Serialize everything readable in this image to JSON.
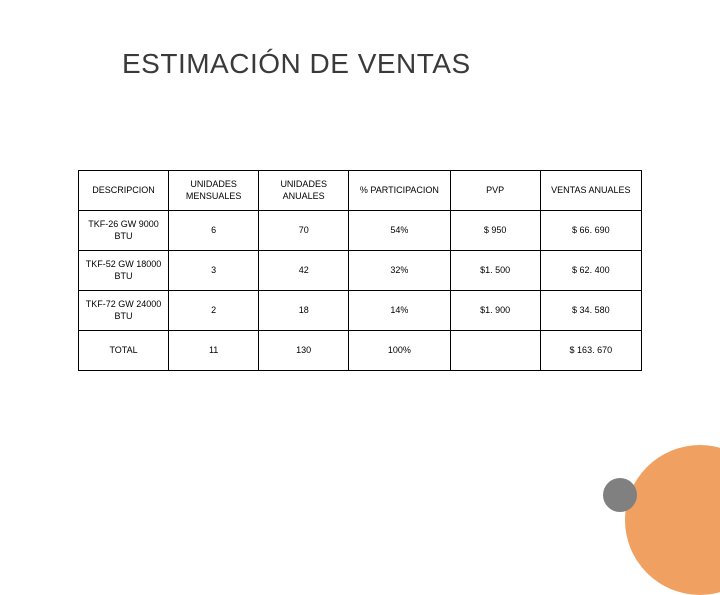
{
  "title": "ESTIMACIÓN DE VENTAS",
  "table": {
    "columns": [
      "DESCRIPCION",
      "UNIDADES MENSUALES",
      "UNIDADES ANUALES",
      "% PARTICIPACION",
      "PVP",
      "VENTAS ANUALES"
    ],
    "rows": [
      [
        "TKF-26 GW 9000 BTU",
        "6",
        "70",
        "54%",
        "$ 950",
        "$ 66. 690"
      ],
      [
        "TKF-52 GW 18000 BTU",
        "3",
        "42",
        "32%",
        "$1. 500",
        "$ 62. 400"
      ],
      [
        "TKF-72 GW 24000 BTU",
        "2",
        "18",
        "14%",
        "$1. 900",
        "$ 34. 580"
      ],
      [
        "TOTAL",
        "11",
        "130",
        "100%",
        "",
        "$ 163. 670"
      ]
    ]
  },
  "colors": {
    "circle_large": "#f0a060",
    "circle_small": "#808080",
    "text": "#000000",
    "title_text": "#3a3a3a",
    "background": "#ffffff",
    "border": "#000000"
  },
  "typography": {
    "title_fontsize": 28,
    "cell_fontsize": 9
  }
}
